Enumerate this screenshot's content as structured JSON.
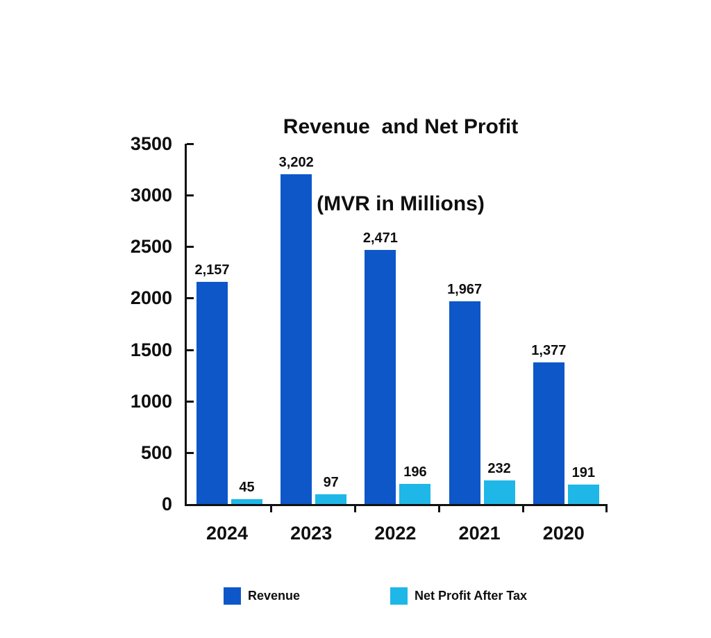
{
  "title": {
    "line1": "Revenue  and Net Profit",
    "line2": "(MVR in Millions)"
  },
  "chart_data": {
    "type": "bar",
    "title": "Revenue and Net Profit (MVR in Millions)",
    "categories": [
      "2024",
      "2023",
      "2022",
      "2021",
      "2020"
    ],
    "series": [
      {
        "name": "Revenue",
        "color": "#0d57c9",
        "values": [
          2157,
          3202,
          2471,
          1967,
          1377
        ],
        "labels": [
          "2,157",
          "3,202",
          "2,471",
          "1,967",
          "1,377"
        ]
      },
      {
        "name": "Net Profit After Tax",
        "color": "#1eb7e8",
        "values": [
          45,
          97,
          196,
          232,
          191
        ],
        "labels": [
          "45",
          "97",
          "196",
          "232",
          "191"
        ]
      }
    ],
    "xlabel": "",
    "ylabel": "",
    "ylim": [
      0,
      3500
    ],
    "yticks": [
      0,
      500,
      1000,
      1500,
      2000,
      2500,
      3000,
      3500
    ],
    "grid": false,
    "legend_position": "bottom"
  },
  "legend": {
    "items": [
      {
        "label": "Revenue",
        "color": "#0d57c9"
      },
      {
        "label": "Net Profit After Tax",
        "color": "#1eb7e8"
      }
    ]
  },
  "colors": {
    "background": "#ffffff",
    "axis": "#111111",
    "text": "#0f0f0f",
    "revenue": "#0d57c9",
    "net_profit": "#1eb7e8"
  }
}
